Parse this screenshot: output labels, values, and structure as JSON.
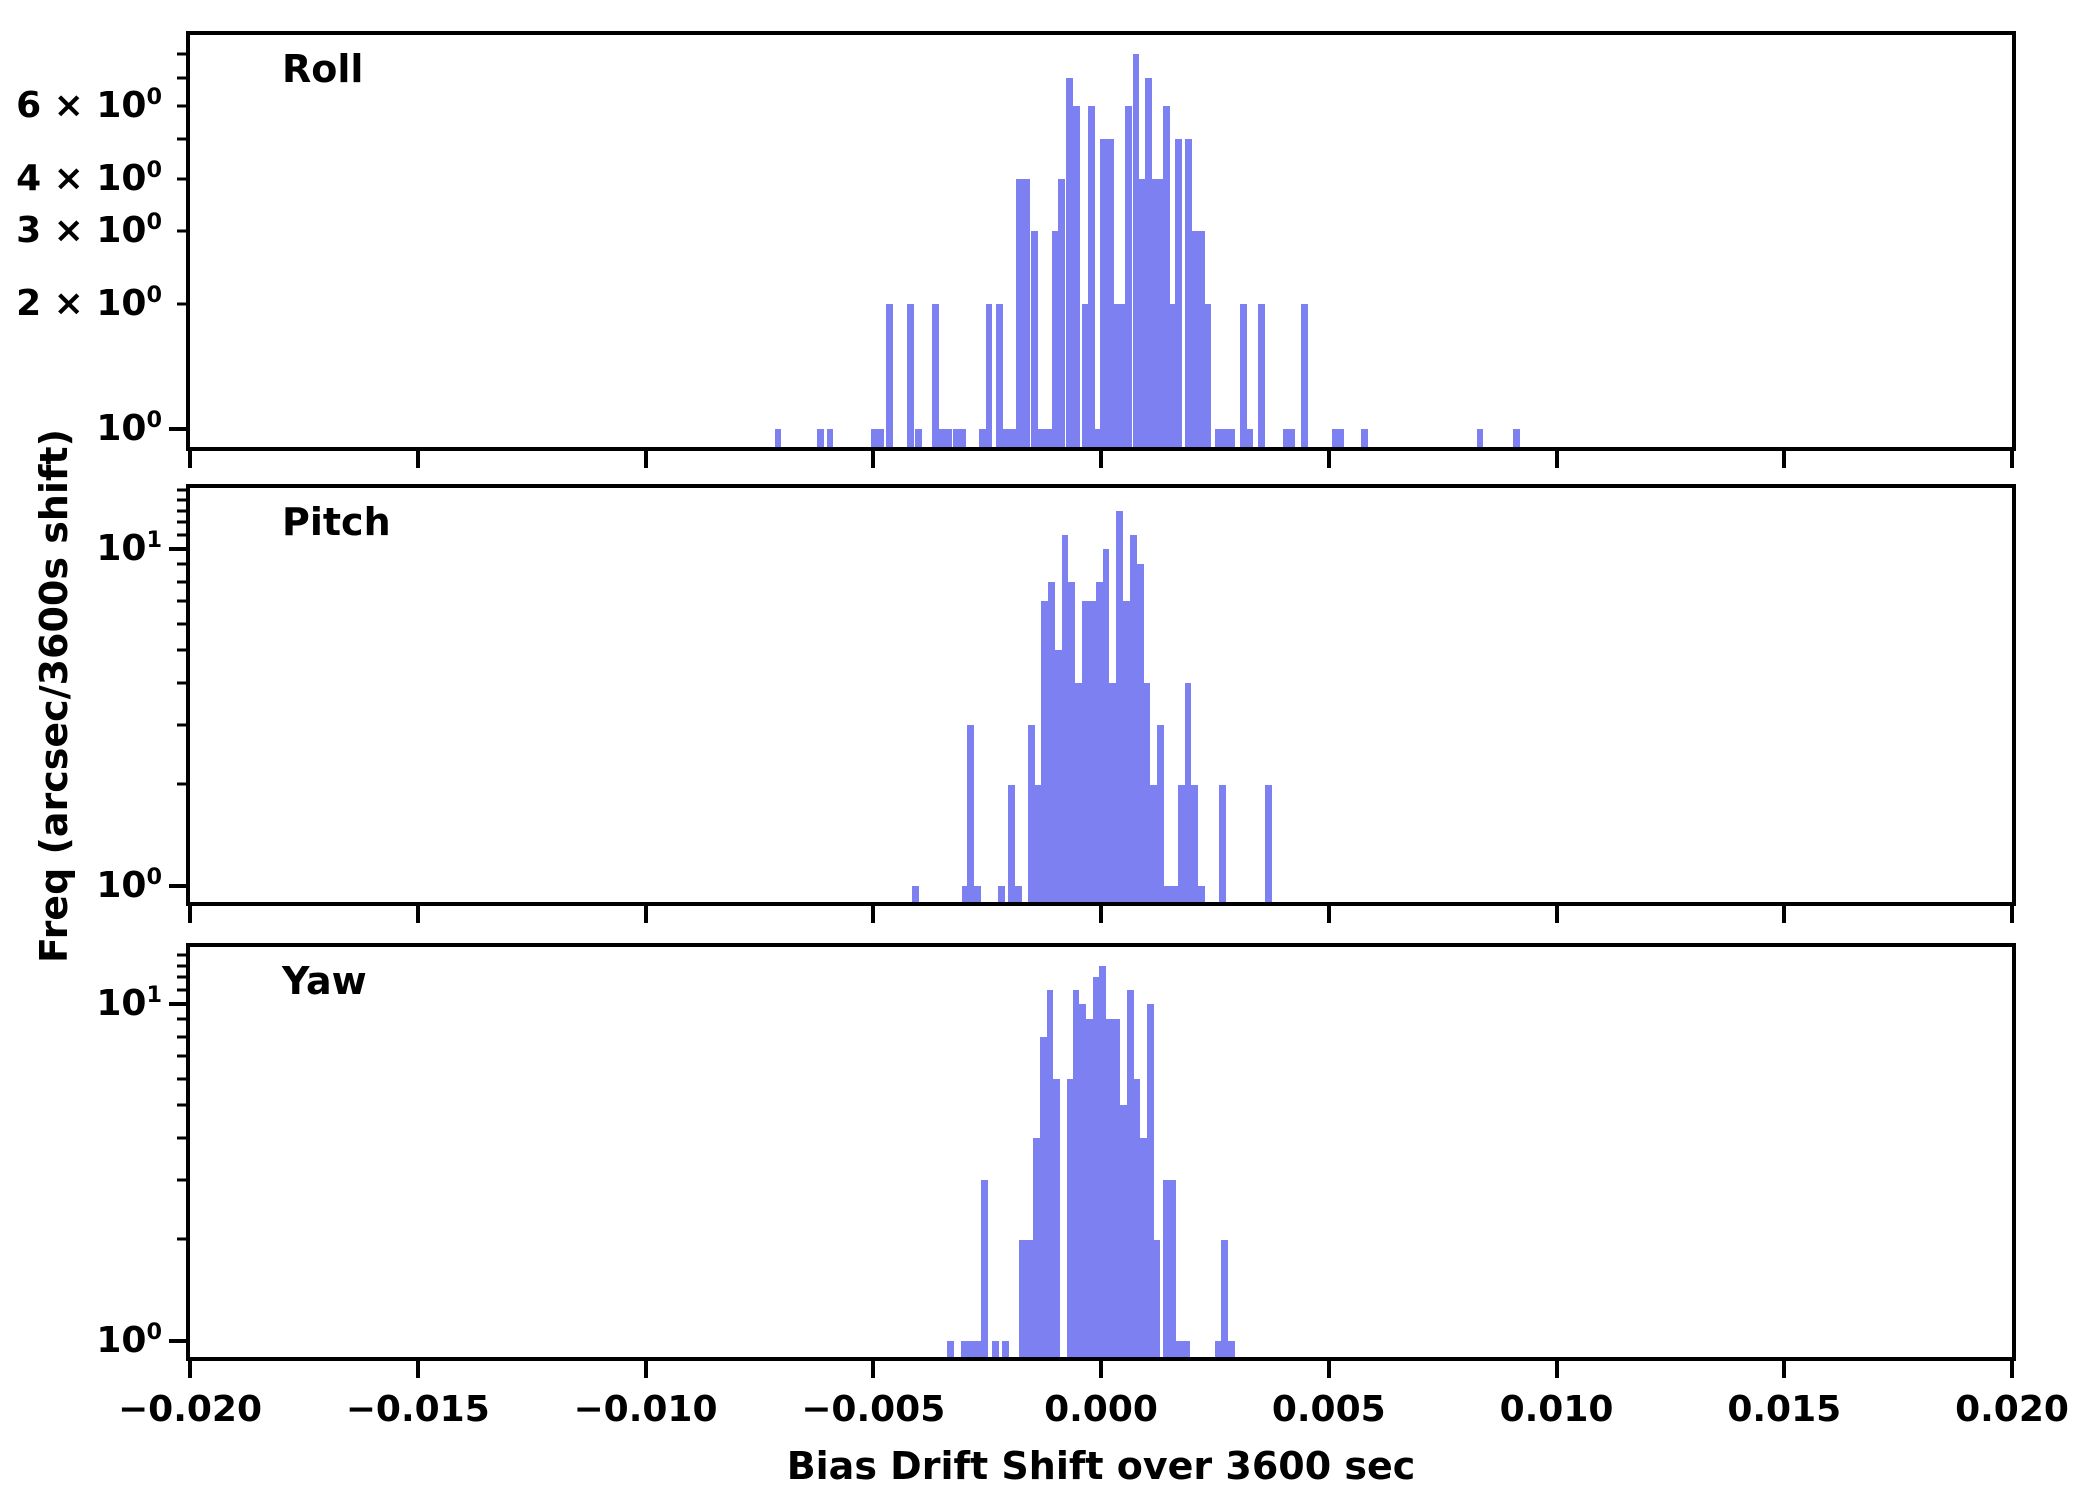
{
  "figure": {
    "background": "#ffffff",
    "bar_color": "#7d80f1",
    "axis_color": "#000000",
    "xlabel": "Bias Drift Shift over 3600 sec",
    "ylabel": "Freq (arcsec/3600s shift)"
  },
  "x_axis": {
    "min": -0.02,
    "max": 0.02,
    "ticks": [
      -0.02,
      -0.015,
      -0.01,
      -0.005,
      0.0,
      0.005,
      0.01,
      0.015,
      0.02
    ],
    "tick_labels": [
      "−0.020",
      "−0.015",
      "−0.010",
      "−0.005",
      "0.000",
      "0.005",
      "0.010",
      "0.015",
      "0.020"
    ]
  },
  "chart_data": [
    {
      "type": "bar",
      "title": "Roll",
      "yscale": "log",
      "ylim": [
        0.905,
        8.9
      ],
      "grid": false,
      "bin_width": 0.00015,
      "yticks": {
        "major": [
          {
            "v": 1,
            "label": "10^0"
          }
        ],
        "minor": [
          {
            "v": 2,
            "label": "2 × 10^0"
          },
          {
            "v": 3,
            "label": "3 × 10^0"
          },
          {
            "v": 4,
            "label": "4 × 10^0"
          },
          {
            "v": 5
          },
          {
            "v": 6,
            "label": "6 × 10^0"
          },
          {
            "v": 7
          },
          {
            "v": 8
          }
        ]
      },
      "bars": [
        [
          -0.00709,
          1
        ],
        [
          -0.00615,
          1
        ],
        [
          -0.00595,
          1
        ],
        [
          -0.00498,
          1
        ],
        [
          -0.00483,
          1
        ],
        [
          -0.00464,
          2
        ],
        [
          -0.00418,
          2
        ],
        [
          -0.004,
          1
        ],
        [
          -0.00364,
          2
        ],
        [
          -0.0035,
          1
        ],
        [
          -0.00335,
          1
        ],
        [
          -0.00318,
          1
        ],
        [
          -0.00303,
          1
        ],
        [
          -0.00261,
          1
        ],
        [
          -0.00246,
          2
        ],
        [
          -0.00223,
          2
        ],
        [
          -0.0021,
          1
        ],
        [
          -0.00195,
          1
        ],
        [
          -0.00179,
          4
        ],
        [
          -0.00164,
          4
        ],
        [
          -0.00146,
          3
        ],
        [
          -0.00131,
          1
        ],
        [
          -0.00116,
          1
        ],
        [
          -0.00101,
          3
        ],
        [
          -0.00087,
          4
        ],
        [
          -0.0007,
          7
        ],
        [
          -0.00053,
          6
        ],
        [
          -0.00035,
          2
        ],
        [
          -0.0002,
          6
        ],
        [
          -7e-05,
          1
        ],
        [
          6e-05,
          5
        ],
        [
          0.0002,
          5
        ],
        [
          0.00033,
          2
        ],
        [
          0.00046,
          2
        ],
        [
          0.0006,
          6
        ],
        [
          0.00077,
          8
        ],
        [
          0.00091,
          4
        ],
        [
          0.00104,
          7
        ],
        [
          0.00118,
          4
        ],
        [
          0.00131,
          4
        ],
        [
          0.00144,
          6
        ],
        [
          0.00157,
          2
        ],
        [
          0.00171,
          5
        ],
        [
          0.00193,
          5
        ],
        [
          0.00207,
          3
        ],
        [
          0.0022,
          3
        ],
        [
          0.00233,
          2
        ],
        [
          0.00258,
          1
        ],
        [
          0.00272,
          1
        ],
        [
          0.00287,
          1
        ],
        [
          0.00313,
          2
        ],
        [
          0.00326,
          1
        ],
        [
          0.00352,
          2
        ],
        [
          0.00406,
          1
        ],
        [
          0.00419,
          1
        ],
        [
          0.00446,
          2
        ],
        [
          0.00514,
          1
        ],
        [
          0.00527,
          1
        ],
        [
          0.00579,
          1
        ],
        [
          0.00832,
          1
        ],
        [
          0.00912,
          1
        ]
      ]
    },
    {
      "type": "bar",
      "title": "Pitch",
      "yscale": "log",
      "ylim": [
        0.896,
        15.17
      ],
      "grid": false,
      "bin_width": 0.00015,
      "yticks": {
        "major": [
          {
            "v": 1,
            "label": "10^0"
          },
          {
            "v": 10,
            "label": "10^1"
          }
        ],
        "minor": [
          {
            "v": 2
          },
          {
            "v": 3
          },
          {
            "v": 4
          },
          {
            "v": 5
          },
          {
            "v": 6
          },
          {
            "v": 7
          },
          {
            "v": 8
          },
          {
            "v": 9
          },
          {
            "v": 11
          },
          {
            "v": 12
          },
          {
            "v": 13
          },
          {
            "v": 14
          },
          {
            "v": 15
          }
        ]
      },
      "bars": [
        [
          -0.00408,
          1
        ],
        [
          -0.00298,
          1
        ],
        [
          -0.00287,
          3
        ],
        [
          -0.00272,
          1
        ],
        [
          -0.00219,
          1
        ],
        [
          -0.00196,
          2
        ],
        [
          -0.00181,
          1
        ],
        [
          -0.00152,
          3
        ],
        [
          -0.00139,
          2
        ],
        [
          -0.00124,
          7
        ],
        [
          -0.00109,
          8
        ],
        [
          -0.00094,
          5
        ],
        [
          -0.00079,
          11
        ],
        [
          -0.00064,
          8
        ],
        [
          -0.00049,
          4
        ],
        [
          -0.00034,
          7
        ],
        [
          -0.00019,
          7
        ],
        [
          -4e-05,
          8
        ],
        [
          0.00011,
          10
        ],
        [
          0.00026,
          4
        ],
        [
          0.00041,
          13
        ],
        [
          0.00056,
          7
        ],
        [
          0.00071,
          11
        ],
        [
          0.00086,
          9
        ],
        [
          0.00101,
          4
        ],
        [
          0.00116,
          2
        ],
        [
          0.00131,
          3
        ],
        [
          0.00146,
          1
        ],
        [
          0.00161,
          1
        ],
        [
          0.00176,
          2
        ],
        [
          0.00191,
          4
        ],
        [
          0.00206,
          2
        ],
        [
          0.00221,
          1
        ],
        [
          0.00266,
          2
        ],
        [
          0.00368,
          2
        ]
      ]
    },
    {
      "type": "bar",
      "title": "Yaw",
      "yscale": "log",
      "ylim": [
        0.896,
        14.76
      ],
      "grid": false,
      "bin_width": 0.00015,
      "yticks": {
        "major": [
          {
            "v": 1,
            "label": "10^0"
          },
          {
            "v": 10,
            "label": "10^1"
          }
        ],
        "minor": [
          {
            "v": 2
          },
          {
            "v": 3
          },
          {
            "v": 4
          },
          {
            "v": 5
          },
          {
            "v": 6
          },
          {
            "v": 7
          },
          {
            "v": 8
          },
          {
            "v": 9
          },
          {
            "v": 11
          },
          {
            "v": 12
          },
          {
            "v": 13
          },
          {
            "v": 14
          }
        ]
      },
      "bars": [
        [
          -0.0033,
          1
        ],
        [
          -0.003,
          1
        ],
        [
          -0.00285,
          1
        ],
        [
          -0.0027,
          1
        ],
        [
          -0.00256,
          3
        ],
        [
          -0.00232,
          1
        ],
        [
          -0.0021,
          1
        ],
        [
          -0.00172,
          2
        ],
        [
          -0.00157,
          2
        ],
        [
          -0.00142,
          4
        ],
        [
          -0.00127,
          8
        ],
        [
          -0.00112,
          11
        ],
        [
          -0.00097,
          6
        ],
        [
          -0.00067,
          6
        ],
        [
          -0.00055,
          11
        ],
        [
          -0.0004,
          10
        ],
        [
          -0.00025,
          9
        ],
        [
          -0.0001,
          12
        ],
        [
          4e-05,
          13
        ],
        [
          0.00019,
          9
        ],
        [
          0.00034,
          9
        ],
        [
          0.00049,
          5
        ],
        [
          0.00064,
          11
        ],
        [
          0.00079,
          6
        ],
        [
          0.00094,
          4
        ],
        [
          0.00109,
          10
        ],
        [
          0.00122,
          2
        ],
        [
          0.00143,
          3
        ],
        [
          0.00158,
          3
        ],
        [
          0.00173,
          1
        ],
        [
          0.00188,
          1
        ],
        [
          0.00258,
          1
        ],
        [
          0.00272,
          2
        ],
        [
          0.00287,
          1
        ]
      ]
    }
  ]
}
